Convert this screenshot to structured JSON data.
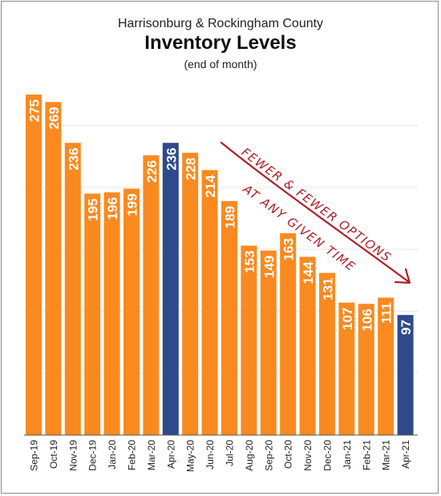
{
  "titles": {
    "line1": "Harrisonburg & Rockingham County",
    "main": "Inventory Levels",
    "note": "(end of month)"
  },
  "annotation": {
    "line1": "FEWER & FEWER OPTIONS",
    "line2": "AT ANY GIVEN TIME"
  },
  "colors": {
    "bar": "#F98A20",
    "highlight": "#2E4A8C",
    "label": "#ffffff",
    "annotation": "#B01E28",
    "grid": "#e6e6e6",
    "axis": "#555555"
  },
  "chart_data": {
    "type": "bar",
    "title": "Inventory Levels",
    "subtitle": "(end of month)",
    "categories": [
      "Sep-19",
      "Oct-19",
      "Nov-19",
      "Dec-19",
      "Jan-20",
      "Feb-20",
      "Mar-20",
      "Apr-20",
      "May-20",
      "Jun-20",
      "Jul-20",
      "Aug-20",
      "Sep-20",
      "Oct-20",
      "Nov-20",
      "Dec-20",
      "Jan-21",
      "Feb-21",
      "Mar-21",
      "Apr-21"
    ],
    "values": [
      275,
      269,
      236,
      195,
      196,
      199,
      226,
      236,
      228,
      214,
      189,
      153,
      149,
      163,
      144,
      131,
      107,
      106,
      111,
      97
    ],
    "highlighted": [
      "Apr-20",
      "Apr-21"
    ],
    "ylim": [
      0,
      275
    ],
    "grid": true,
    "data_labels": true
  }
}
